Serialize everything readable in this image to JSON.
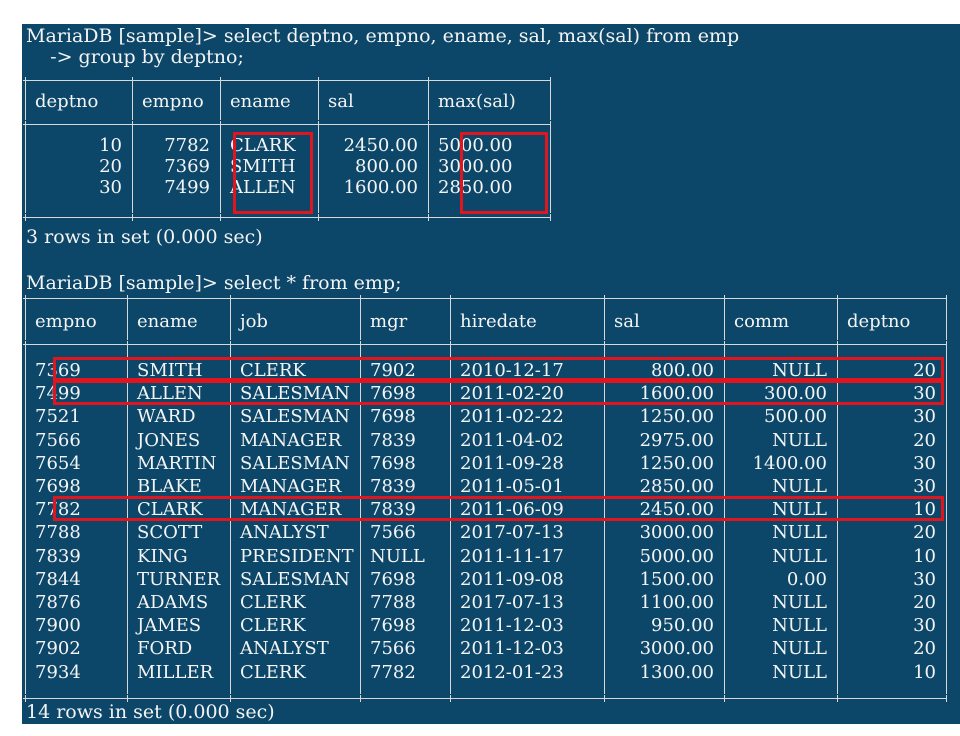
{
  "prompt1": "MariaDB [sample]> select deptno, empno, ename, sal, max(sal) from emp",
  "prompt1_cont": "    -> group by deptno;",
  "result1": {
    "headers": [
      "deptno",
      "empno",
      "ename",
      "sal",
      "max(sal)"
    ],
    "rows": [
      [
        "10",
        "7782",
        "CLARK",
        "2450.00",
        "5000.00"
      ],
      [
        "20",
        "7369",
        "SMITH",
        "800.00",
        "3000.00"
      ],
      [
        "30",
        "7499",
        "ALLEN",
        "1600.00",
        "2850.00"
      ]
    ],
    "footer": "3 rows in set (0.000 sec)"
  },
  "prompt2": "MariaDB [sample]> select * from emp;",
  "result2": {
    "headers": [
      "empno",
      "ename",
      "job",
      "mgr",
      "hiredate",
      "sal",
      "comm",
      "deptno"
    ],
    "rows": [
      [
        "7369",
        "SMITH",
        "CLERK",
        "7902",
        "2010-12-17",
        "800.00",
        "NULL",
        "20"
      ],
      [
        "7499",
        "ALLEN",
        "SALESMAN",
        "7698",
        "2011-02-20",
        "1600.00",
        "300.00",
        "30"
      ],
      [
        "7521",
        "WARD",
        "SALESMAN",
        "7698",
        "2011-02-22",
        "1250.00",
        "500.00",
        "30"
      ],
      [
        "7566",
        "JONES",
        "MANAGER",
        "7839",
        "2011-04-02",
        "2975.00",
        "NULL",
        "20"
      ],
      [
        "7654",
        "MARTIN",
        "SALESMAN",
        "7698",
        "2011-09-28",
        "1250.00",
        "1400.00",
        "30"
      ],
      [
        "7698",
        "BLAKE",
        "MANAGER",
        "7839",
        "2011-05-01",
        "2850.00",
        "NULL",
        "30"
      ],
      [
        "7782",
        "CLARK",
        "MANAGER",
        "7839",
        "2011-06-09",
        "2450.00",
        "NULL",
        "10"
      ],
      [
        "7788",
        "SCOTT",
        "ANALYST",
        "7566",
        "2017-07-13",
        "3000.00",
        "NULL",
        "20"
      ],
      [
        "7839",
        "KING",
        "PRESIDENT",
        "NULL",
        "2011-11-17",
        "5000.00",
        "NULL",
        "10"
      ],
      [
        "7844",
        "TURNER",
        "SALESMAN",
        "7698",
        "2011-09-08",
        "1500.00",
        "0.00",
        "30"
      ],
      [
        "7876",
        "ADAMS",
        "CLERK",
        "7788",
        "2017-07-13",
        "1100.00",
        "NULL",
        "20"
      ],
      [
        "7900",
        "JAMES",
        "CLERK",
        "7698",
        "2011-12-03",
        "950.00",
        "NULL",
        "30"
      ],
      [
        "7902",
        "FORD",
        "ANALYST",
        "7566",
        "2011-12-03",
        "3000.00",
        "NULL",
        "20"
      ],
      [
        "7934",
        "MILLER",
        "CLERK",
        "7782",
        "2012-01-23",
        "1300.00",
        "NULL",
        "10"
      ]
    ],
    "footer": "14 rows in set (0.000 sec)"
  },
  "colors": {
    "terminal_bg": "#0c4769",
    "text": "#f4f4f4",
    "highlight": "#e0151d"
  }
}
